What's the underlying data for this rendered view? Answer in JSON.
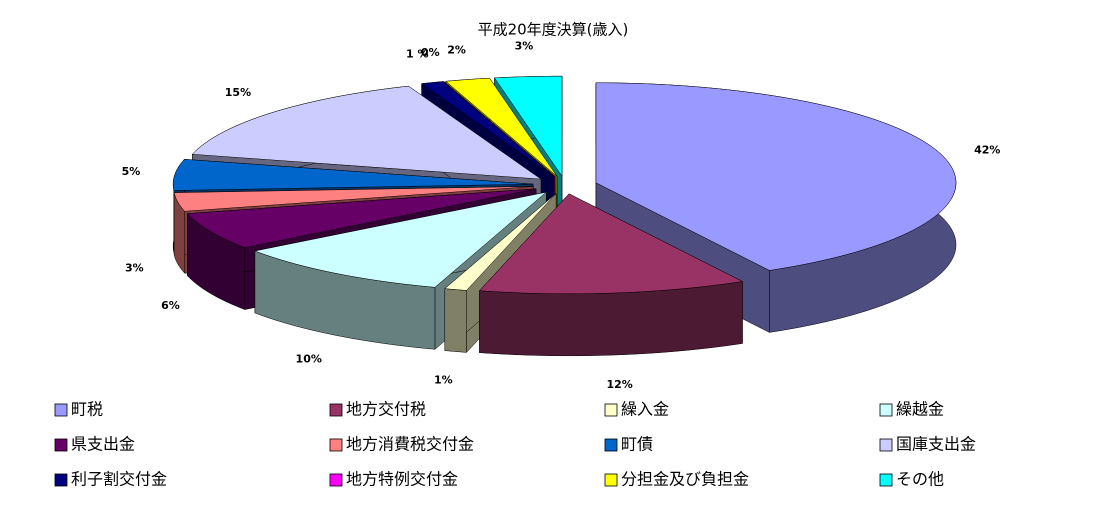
{
  "chart_data": {
    "type": "pie3d",
    "title": "平成20年度決算(歳入)",
    "categories": [
      "町税",
      "地方交付税",
      "繰入金",
      "繰越金",
      "県支出金",
      "地方消費税交付金",
      "町債",
      "国庫支出金",
      "利子割交付金",
      "地方特例交付金",
      "分担金及び負担金",
      "その他"
    ],
    "values": [
      42,
      12,
      1,
      10,
      6,
      3,
      5,
      15,
      1,
      0,
      2,
      3
    ],
    "value_labels": [
      "42%",
      "12%",
      "1%",
      "10%",
      "6%",
      "3%",
      "5%",
      "15%",
      "1 %",
      "0%",
      "2%",
      "3%"
    ],
    "colors": [
      "#9999ff",
      "#993366",
      "#ffffcc",
      "#ccffff",
      "#660066",
      "#ff8080",
      "#0066cc",
      "#ccccff",
      "#000080",
      "#ff00ff",
      "#ffff00",
      "#00ffff"
    ]
  }
}
